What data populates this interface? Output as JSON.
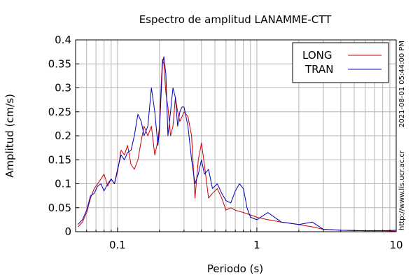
{
  "chart_data": {
    "type": "line",
    "title": "Espectro de amplitud LANAMME-CTT",
    "xlabel": "Periodo (s)",
    "ylabel": "Amplitud (cm/s)",
    "x_scale": "log",
    "xlim": [
      0.05,
      10
    ],
    "ylim": [
      0,
      0.4
    ],
    "x_ticks": [
      0.1,
      1,
      10
    ],
    "x_tick_labels": [
      "0.1",
      "1",
      "10"
    ],
    "y_ticks": [
      0,
      0.05,
      0.1,
      0.15,
      0.2,
      0.25,
      0.3,
      0.35,
      0.4
    ],
    "y_tick_labels": [
      "0",
      "0.05",
      "0.1",
      "0.15",
      "0.2",
      "0.25",
      "0.3",
      "0.35",
      "0.4"
    ],
    "grid": true,
    "legend_position": "top-right",
    "series": [
      {
        "name": "LONG",
        "color": "#cc0000",
        "points": [
          [
            0.052,
            0.01
          ],
          [
            0.056,
            0.02
          ],
          [
            0.06,
            0.04
          ],
          [
            0.064,
            0.07
          ],
          [
            0.068,
            0.09
          ],
          [
            0.072,
            0.1
          ],
          [
            0.076,
            0.11
          ],
          [
            0.08,
            0.12
          ],
          [
            0.085,
            0.095
          ],
          [
            0.09,
            0.11
          ],
          [
            0.095,
            0.1
          ],
          [
            0.1,
            0.125
          ],
          [
            0.106,
            0.17
          ],
          [
            0.112,
            0.16
          ],
          [
            0.118,
            0.18
          ],
          [
            0.125,
            0.14
          ],
          [
            0.132,
            0.13
          ],
          [
            0.14,
            0.15
          ],
          [
            0.148,
            0.19
          ],
          [
            0.155,
            0.22
          ],
          [
            0.165,
            0.2
          ],
          [
            0.175,
            0.22
          ],
          [
            0.185,
            0.16
          ],
          [
            0.195,
            0.19
          ],
          [
            0.2,
            0.22
          ],
          [
            0.205,
            0.3
          ],
          [
            0.21,
            0.36
          ],
          [
            0.215,
            0.35
          ],
          [
            0.222,
            0.29
          ],
          [
            0.23,
            0.26
          ],
          [
            0.24,
            0.2
          ],
          [
            0.25,
            0.22
          ],
          [
            0.26,
            0.28
          ],
          [
            0.27,
            0.25
          ],
          [
            0.28,
            0.23
          ],
          [
            0.29,
            0.24
          ],
          [
            0.3,
            0.25
          ],
          [
            0.32,
            0.24
          ],
          [
            0.34,
            0.2
          ],
          [
            0.36,
            0.07
          ],
          [
            0.38,
            0.15
          ],
          [
            0.4,
            0.185
          ],
          [
            0.42,
            0.14
          ],
          [
            0.45,
            0.07
          ],
          [
            0.48,
            0.08
          ],
          [
            0.52,
            0.09
          ],
          [
            0.56,
            0.07
          ],
          [
            0.6,
            0.045
          ],
          [
            0.65,
            0.05
          ],
          [
            0.7,
            0.045
          ],
          [
            0.8,
            0.04
          ],
          [
            0.9,
            0.035
          ],
          [
            1.0,
            0.03
          ],
          [
            1.2,
            0.025
          ],
          [
            1.5,
            0.02
          ],
          [
            2.0,
            0.015
          ],
          [
            2.5,
            0.01
          ],
          [
            3.0,
            0.005
          ],
          [
            4.0,
            0.003
          ],
          [
            6.0,
            0.002
          ],
          [
            8.0,
            0.002
          ],
          [
            10.0,
            0.001
          ]
        ]
      },
      {
        "name": "TRAN",
        "color": "#0000bb",
        "points": [
          [
            0.052,
            0.015
          ],
          [
            0.056,
            0.025
          ],
          [
            0.06,
            0.045
          ],
          [
            0.064,
            0.075
          ],
          [
            0.068,
            0.08
          ],
          [
            0.072,
            0.095
          ],
          [
            0.076,
            0.1
          ],
          [
            0.08,
            0.085
          ],
          [
            0.085,
            0.1
          ],
          [
            0.09,
            0.11
          ],
          [
            0.095,
            0.1
          ],
          [
            0.1,
            0.13
          ],
          [
            0.106,
            0.16
          ],
          [
            0.112,
            0.15
          ],
          [
            0.118,
            0.165
          ],
          [
            0.125,
            0.17
          ],
          [
            0.132,
            0.2
          ],
          [
            0.14,
            0.245
          ],
          [
            0.148,
            0.23
          ],
          [
            0.155,
            0.2
          ],
          [
            0.165,
            0.22
          ],
          [
            0.175,
            0.3
          ],
          [
            0.185,
            0.25
          ],
          [
            0.195,
            0.18
          ],
          [
            0.2,
            0.21
          ],
          [
            0.205,
            0.28
          ],
          [
            0.21,
            0.35
          ],
          [
            0.215,
            0.365
          ],
          [
            0.222,
            0.33
          ],
          [
            0.23,
            0.2
          ],
          [
            0.24,
            0.25
          ],
          [
            0.25,
            0.3
          ],
          [
            0.26,
            0.28
          ],
          [
            0.27,
            0.22
          ],
          [
            0.28,
            0.25
          ],
          [
            0.29,
            0.26
          ],
          [
            0.3,
            0.26
          ],
          [
            0.32,
            0.22
          ],
          [
            0.34,
            0.15
          ],
          [
            0.36,
            0.1
          ],
          [
            0.38,
            0.12
          ],
          [
            0.4,
            0.15
          ],
          [
            0.42,
            0.12
          ],
          [
            0.45,
            0.13
          ],
          [
            0.48,
            0.09
          ],
          [
            0.52,
            0.1
          ],
          [
            0.56,
            0.08
          ],
          [
            0.6,
            0.065
          ],
          [
            0.65,
            0.06
          ],
          [
            0.7,
            0.085
          ],
          [
            0.75,
            0.1
          ],
          [
            0.8,
            0.09
          ],
          [
            0.85,
            0.05
          ],
          [
            0.9,
            0.03
          ],
          [
            1.0,
            0.025
          ],
          [
            1.2,
            0.04
          ],
          [
            1.5,
            0.02
          ],
          [
            2.0,
            0.015
          ],
          [
            2.5,
            0.02
          ],
          [
            3.0,
            0.005
          ],
          [
            4.0,
            0.003
          ],
          [
            6.0,
            0.002
          ],
          [
            8.0,
            0.002
          ],
          [
            10.0,
            0.003
          ]
        ]
      }
    ]
  },
  "side_labels": {
    "timestamp": "2021-08-01 05:44:00 PM",
    "url": "http://www.lis.ucr.ac.cr"
  }
}
